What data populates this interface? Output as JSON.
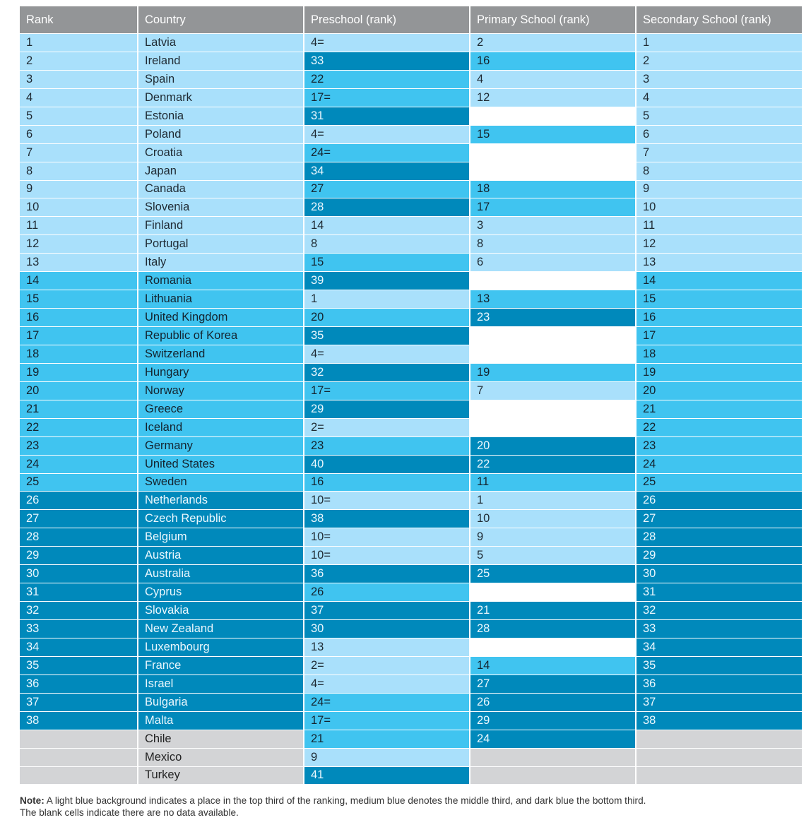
{
  "colors": {
    "light": "#a9e0fb",
    "medium": "#40c4f0",
    "dark": "#0089bb",
    "header": "#939597",
    "unranked": "#d3d4d6"
  },
  "table": {
    "headers": [
      "Rank",
      "Country",
      "Preschool (rank)",
      "Primary School (rank)",
      "Secondary School (rank)"
    ],
    "rows": [
      {
        "rank": "1",
        "country": "Latvia",
        "pre": "4=",
        "pri": "2",
        "sec": "1",
        "tier": [
          "L",
          "L",
          "L",
          "L",
          "L"
        ]
      },
      {
        "rank": "2",
        "country": "Ireland",
        "pre": "33",
        "pri": "16",
        "sec": "2",
        "tier": [
          "L",
          "L",
          "D",
          "M",
          "L"
        ]
      },
      {
        "rank": "3",
        "country": "Spain",
        "pre": "22",
        "pri": "4",
        "sec": "3",
        "tier": [
          "L",
          "L",
          "M",
          "L",
          "L"
        ]
      },
      {
        "rank": "4",
        "country": "Denmark",
        "pre": "17=",
        "pri": "12",
        "sec": "4",
        "tier": [
          "L",
          "L",
          "M",
          "L",
          "L"
        ]
      },
      {
        "rank": "5",
        "country": "Estonia",
        "pre": "31",
        "pri": "",
        "sec": "5",
        "tier": [
          "L",
          "L",
          "D",
          "W",
          "L"
        ]
      },
      {
        "rank": "6",
        "country": "Poland",
        "pre": "4=",
        "pri": "15",
        "sec": "6",
        "tier": [
          "L",
          "L",
          "L",
          "M",
          "L"
        ]
      },
      {
        "rank": "7",
        "country": "Croatia",
        "pre": "24=",
        "pri": "",
        "sec": "7",
        "tier": [
          "L",
          "L",
          "M",
          "W",
          "L"
        ]
      },
      {
        "rank": "8",
        "country": "Japan",
        "pre": "34",
        "pri": "",
        "sec": "8",
        "tier": [
          "L",
          "L",
          "D",
          "W",
          "L"
        ]
      },
      {
        "rank": "9",
        "country": "Canada",
        "pre": "27",
        "pri": "18",
        "sec": "9",
        "tier": [
          "L",
          "L",
          "M",
          "M",
          "L"
        ]
      },
      {
        "rank": "10",
        "country": "Slovenia",
        "pre": "28",
        "pri": "17",
        "sec": "10",
        "tier": [
          "L",
          "L",
          "D",
          "M",
          "L"
        ]
      },
      {
        "rank": "11",
        "country": "Finland",
        "pre": "14",
        "pri": "3",
        "sec": "11",
        "tier": [
          "L",
          "L",
          "L",
          "L",
          "L"
        ]
      },
      {
        "rank": "12",
        "country": "Portugal",
        "pre": "8",
        "pri": "8",
        "sec": "12",
        "tier": [
          "L",
          "L",
          "L",
          "L",
          "L"
        ]
      },
      {
        "rank": "13",
        "country": "Italy",
        "pre": "15",
        "pri": "6",
        "sec": "13",
        "tier": [
          "L",
          "L",
          "M",
          "L",
          "L"
        ]
      },
      {
        "rank": "14",
        "country": "Romania",
        "pre": "39",
        "pri": "",
        "sec": "14",
        "tier": [
          "M",
          "M",
          "D",
          "W",
          "M"
        ]
      },
      {
        "rank": "15",
        "country": "Lithuania",
        "pre": "1",
        "pri": "13",
        "sec": "15",
        "tier": [
          "M",
          "M",
          "L",
          "M",
          "M"
        ]
      },
      {
        "rank": "16",
        "country": "United Kingdom",
        "pre": "20",
        "pri": "23",
        "sec": "16",
        "tier": [
          "M",
          "M",
          "M",
          "D",
          "M"
        ]
      },
      {
        "rank": "17",
        "country": "Republic of Korea",
        "pre": "35",
        "pri": "",
        "sec": "17",
        "tier": [
          "M",
          "M",
          "D",
          "W",
          "M"
        ]
      },
      {
        "rank": "18",
        "country": "Switzerland",
        "pre": "4=",
        "pri": "",
        "sec": "18",
        "tier": [
          "M",
          "M",
          "L",
          "W",
          "M"
        ]
      },
      {
        "rank": "19",
        "country": "Hungary",
        "pre": "32",
        "pri": "19",
        "sec": "19",
        "tier": [
          "M",
          "M",
          "D",
          "M",
          "M"
        ]
      },
      {
        "rank": "20",
        "country": "Norway",
        "pre": "17=",
        "pri": "7",
        "sec": "20",
        "tier": [
          "M",
          "M",
          "M",
          "L",
          "M"
        ]
      },
      {
        "rank": "21",
        "country": "Greece",
        "pre": "29",
        "pri": "",
        "sec": "21",
        "tier": [
          "M",
          "M",
          "D",
          "W",
          "M"
        ]
      },
      {
        "rank": "22",
        "country": "Iceland",
        "pre": "2=",
        "pri": "",
        "sec": "22",
        "tier": [
          "M",
          "M",
          "L",
          "W",
          "M"
        ]
      },
      {
        "rank": "23",
        "country": "Germany",
        "pre": "23",
        "pri": "20",
        "sec": "23",
        "tier": [
          "M",
          "M",
          "M",
          "D",
          "M"
        ]
      },
      {
        "rank": "24",
        "country": "United States",
        "pre": "40",
        "pri": "22",
        "sec": "24",
        "tier": [
          "M",
          "M",
          "D",
          "D",
          "M"
        ]
      },
      {
        "rank": "25",
        "country": "Sweden",
        "pre": "16",
        "pri": "11",
        "sec": "25",
        "tier": [
          "M",
          "M",
          "M",
          "M",
          "M"
        ]
      },
      {
        "rank": "26",
        "country": "Netherlands",
        "pre": "10=",
        "pri": "1",
        "sec": "26",
        "tier": [
          "D",
          "D",
          "L",
          "L",
          "D"
        ]
      },
      {
        "rank": "27",
        "country": "Czech Republic",
        "pre": "38",
        "pri": "10",
        "sec": "27",
        "tier": [
          "D",
          "D",
          "D",
          "L",
          "D"
        ]
      },
      {
        "rank": "28",
        "country": "Belgium",
        "pre": "10=",
        "pri": "9",
        "sec": "28",
        "tier": [
          "D",
          "D",
          "L",
          "L",
          "D"
        ]
      },
      {
        "rank": "29",
        "country": "Austria",
        "pre": "10=",
        "pri": "5",
        "sec": "29",
        "tier": [
          "D",
          "D",
          "L",
          "L",
          "D"
        ]
      },
      {
        "rank": "30",
        "country": "Australia",
        "pre": "36",
        "pri": "25",
        "sec": "30",
        "tier": [
          "D",
          "D",
          "D",
          "D",
          "D"
        ]
      },
      {
        "rank": "31",
        "country": "Cyprus",
        "pre": "26",
        "pri": "",
        "sec": "31",
        "tier": [
          "D",
          "D",
          "M",
          "W",
          "D"
        ]
      },
      {
        "rank": "32",
        "country": "Slovakia",
        "pre": "37",
        "pri": "21",
        "sec": "32",
        "tier": [
          "D",
          "D",
          "D",
          "D",
          "D"
        ]
      },
      {
        "rank": "33",
        "country": "New Zealand",
        "pre": "30",
        "pri": "28",
        "sec": "33",
        "tier": [
          "D",
          "D",
          "D",
          "D",
          "D"
        ]
      },
      {
        "rank": "34",
        "country": "Luxembourg",
        "pre": "13",
        "pri": "",
        "sec": "34",
        "tier": [
          "D",
          "D",
          "L",
          "W",
          "D"
        ]
      },
      {
        "rank": "35",
        "country": "France",
        "pre": "2=",
        "pri": "14",
        "sec": "35",
        "tier": [
          "D",
          "D",
          "L",
          "M",
          "D"
        ]
      },
      {
        "rank": "36",
        "country": "Israel",
        "pre": "4=",
        "pri": "27",
        "sec": "36",
        "tier": [
          "D",
          "D",
          "L",
          "D",
          "D"
        ]
      },
      {
        "rank": "37",
        "country": "Bulgaria",
        "pre": "24=",
        "pri": "26",
        "sec": "37",
        "tier": [
          "D",
          "D",
          "M",
          "D",
          "D"
        ]
      },
      {
        "rank": "38",
        "country": "Malta",
        "pre": "17=",
        "pri": "29",
        "sec": "38",
        "tier": [
          "D",
          "D",
          "M",
          "D",
          "D"
        ]
      },
      {
        "rank": "",
        "country": "Chile",
        "pre": "21",
        "pri": "24",
        "sec": "",
        "tier": [
          "G",
          "G",
          "M",
          "D",
          "G"
        ]
      },
      {
        "rank": "",
        "country": "Mexico",
        "pre": "9",
        "pri": "",
        "sec": "",
        "tier": [
          "G",
          "G",
          "L",
          "G",
          "G"
        ]
      },
      {
        "rank": "",
        "country": "Turkey",
        "pre": "41",
        "pri": "",
        "sec": "",
        "tier": [
          "G",
          "G",
          "D",
          "G",
          "G"
        ]
      }
    ]
  },
  "note": {
    "label": "Note:",
    "line1": " A light blue background indicates a place in the top third of the ranking, medium blue denotes the middle third, and dark blue the bottom third.",
    "line2": "The blank cells indicate there are no data available."
  }
}
